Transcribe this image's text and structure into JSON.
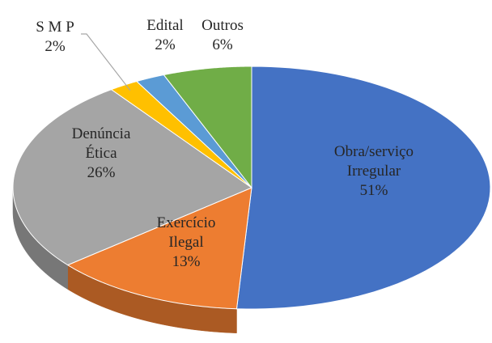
{
  "chart_data": {
    "type": "pie3d",
    "categories": [
      "Obra/serviço Irregular",
      "Exercício Ilegal",
      "Denúncia Ética",
      "S M P",
      "Edital",
      "Outros"
    ],
    "values": [
      51,
      13,
      26,
      2,
      2,
      6
    ],
    "value_labels": [
      "51%",
      "13%",
      "26%",
      "2%",
      "2%",
      "6%"
    ],
    "colors": [
      "#4472c4",
      "#ed7d31",
      "#a5a5a5",
      "#ffc000",
      "#5b9bd5",
      "#70ad47"
    ]
  }
}
